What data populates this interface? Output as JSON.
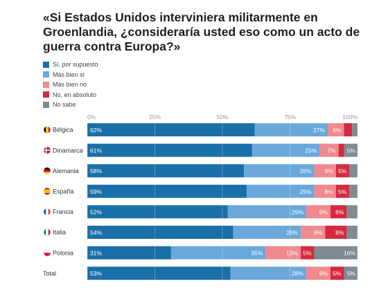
{
  "title": "«Si Estados Unidos interviniera militarmente en Groenlandia, ¿consideraría usted eso como un acto de guerra contra Europa?»",
  "legend": [
    {
      "label": "Sí, por supuesto",
      "color": "#1a6fa9"
    },
    {
      "label": "Más bien sí",
      "color": "#6aa8dc"
    },
    {
      "label": "Más bien no",
      "color": "#f08a8f"
    },
    {
      "label": "No, en absoluto",
      "color": "#d42a3f"
    },
    {
      "label": "No sabe",
      "color": "#7e8a94"
    }
  ],
  "chart_data": {
    "type": "bar",
    "orientation": "horizontal",
    "stacked": true,
    "title": "«Si Estados Unidos interviniera militarmente en Groenlandia, ¿consideraría usted eso como un acto de guerra contra Europa?»",
    "x_ticks": [
      "0%",
      "25%",
      "50%",
      "75%",
      "100%"
    ],
    "xlim": [
      0,
      100
    ],
    "grid": true,
    "legend_position": "top-left",
    "categories": [
      {
        "label": "Bélgica",
        "flag": "belgium-flag-icon"
      },
      {
        "label": "Dinamarca",
        "flag": "denmark-flag-icon"
      },
      {
        "label": "Alemania",
        "flag": "germany-flag-icon"
      },
      {
        "label": "España",
        "flag": "spain-flag-icon"
      },
      {
        "label": "Francia",
        "flag": "france-flag-icon"
      },
      {
        "label": "Italia",
        "flag": "italy-flag-icon"
      },
      {
        "label": "Polonia",
        "flag": "poland-flag-icon"
      },
      {
        "label": "Total",
        "flag": null
      }
    ],
    "series": [
      {
        "name": "Sí, por supuesto",
        "color": "#1a6fa9",
        "values": [
          62,
          61,
          58,
          59,
          52,
          54,
          31,
          53
        ]
      },
      {
        "name": "Más bien sí",
        "color": "#6aa8dc",
        "values": [
          27,
          25,
          26,
          25,
          29,
          25,
          35,
          28
        ]
      },
      {
        "name": "Más bien no",
        "color": "#f08a8f",
        "values": [
          6,
          7,
          8,
          8,
          9,
          9,
          13,
          9
        ]
      },
      {
        "name": "No, en absoluto",
        "color": "#d42a3f",
        "values": [
          3,
          2,
          5,
          5,
          6,
          8,
          5,
          5
        ]
      },
      {
        "name": "No sabe",
        "color": "#7e8a94",
        "values": [
          2,
          5,
          3,
          3,
          4,
          4,
          16,
          5
        ]
      }
    ],
    "labels": [
      [
        "62%",
        "27%",
        "6%",
        "",
        ""
      ],
      [
        "61%",
        "25%",
        "7%",
        "",
        "5%"
      ],
      [
        "58%",
        "26%",
        "8%",
        "5%",
        ""
      ],
      [
        "59%",
        "25%",
        "8%",
        "5%",
        ""
      ],
      [
        "52%",
        "29%",
        "9%",
        "6%",
        ""
      ],
      [
        "54%",
        "25%",
        "9%",
        "8%",
        ""
      ],
      [
        "31%",
        "35%",
        "13%",
        "5%",
        "16%"
      ],
      [
        "53%",
        "28%",
        "9%",
        "5%",
        "5%"
      ]
    ]
  }
}
